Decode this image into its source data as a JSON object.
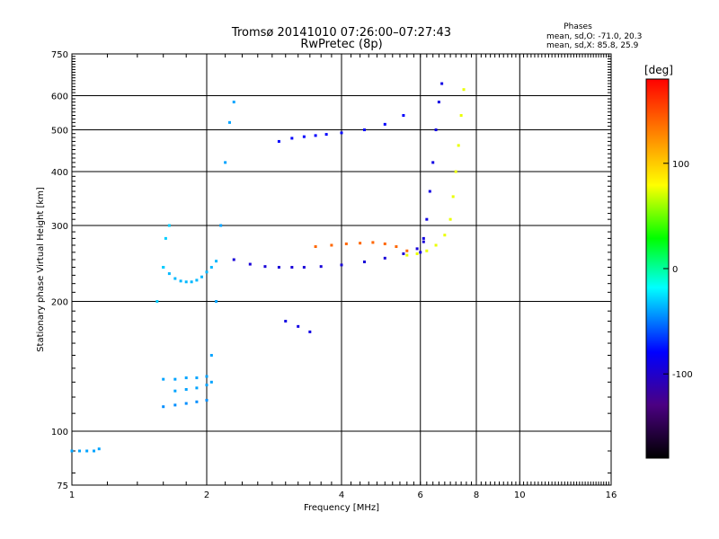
{
  "chart_data": {
    "type": "scatter",
    "title": "Tromsø 20141010 07:26:00–07:27:43",
    "subtitle": "RwPretec (8p)",
    "xlabel": "Frequency [MHz]",
    "ylabel": "Stationary phase Virtual Height [km]",
    "x_scale": "log",
    "y_scale": "log",
    "xlim": [
      1,
      16
    ],
    "ylim": [
      75,
      750
    ],
    "x_ticks": [
      1,
      2,
      4,
      6,
      8,
      10,
      16
    ],
    "y_ticks": [
      75,
      100,
      200,
      300,
      400,
      500,
      600,
      750
    ],
    "x_gridlines": [
      2,
      4,
      6,
      8,
      10
    ],
    "y_gridlines": [
      100,
      200,
      300,
      400,
      500,
      600
    ],
    "stats": {
      "heading": "Phases",
      "line1": "mean, sd,O:  -71.0, 20.3",
      "line2": "mean, sd,X:  85.8, 25.9"
    },
    "colorbar": {
      "label": "[deg]",
      "ticks": [
        100,
        0,
        -100
      ],
      "range": [
        -180,
        180
      ],
      "colors": [
        "#000000",
        "#4b0082",
        "#0000ff",
        "#00ffff",
        "#00ff00",
        "#ffff00",
        "#ff8000",
        "#ff0000"
      ]
    },
    "traces": [
      {
        "x": [
          1.0,
          1.04,
          1.08,
          1.12,
          1.15
        ],
        "y": [
          90,
          90,
          90,
          90,
          91
        ],
        "phase": -40
      },
      {
        "x": [
          1.6,
          1.65,
          1.7,
          1.75,
          1.8,
          1.85,
          1.9,
          1.95,
          2.0,
          2.05,
          2.1
        ],
        "y": [
          240,
          232,
          226,
          223,
          222,
          222,
          224,
          228,
          234,
          240,
          248
        ],
        "phase": -35
      },
      {
        "x": [
          1.55,
          1.6,
          1.62,
          1.65
        ],
        "y": [
          200,
          240,
          280,
          300
        ],
        "phase": -30
      },
      {
        "x": [
          1.6,
          1.7,
          1.8,
          1.9,
          2.0
        ],
        "y": [
          132,
          132,
          133,
          133,
          134
        ],
        "phase": -40
      },
      {
        "x": [
          1.6,
          1.7,
          1.8,
          1.9,
          2.0
        ],
        "y": [
          114,
          115,
          116,
          117,
          118
        ],
        "phase": -45
      },
      {
        "x": [
          1.7,
          1.8,
          1.9,
          2.0,
          2.05
        ],
        "y": [
          124,
          125,
          126,
          128,
          130
        ],
        "phase": -40
      },
      {
        "x": [
          2.9,
          3.1,
          3.3,
          3.5,
          3.7,
          4.0,
          4.5,
          5.0,
          5.5
        ],
        "y": [
          470,
          478,
          482,
          485,
          488,
          492,
          500,
          515,
          540
        ],
        "phase": -80
      },
      {
        "x": [
          2.3,
          2.5,
          2.7,
          2.9,
          3.1,
          3.3,
          3.6,
          4.0,
          4.5,
          5.0,
          5.5,
          5.9,
          6.1
        ],
        "y": [
          250,
          244,
          241,
          240,
          240,
          240,
          241,
          243,
          247,
          252,
          258,
          265,
          275
        ],
        "phase": -95
      },
      {
        "x": [
          6.0,
          6.1,
          6.2,
          6.3,
          6.4,
          6.5,
          6.6,
          6.7
        ],
        "y": [
          260,
          280,
          310,
          360,
          420,
          500,
          580,
          640
        ],
        "phase": -90
      },
      {
        "x": [
          3.5,
          3.8,
          4.1,
          4.4,
          4.7,
          5.0,
          5.3,
          5.6
        ],
        "y": [
          268,
          270,
          272,
          273,
          274,
          272,
          268,
          262
        ],
        "phase": 140
      },
      {
        "x": [
          5.6,
          5.9,
          6.2,
          6.5,
          6.8,
          7.0,
          7.1,
          7.2,
          7.3,
          7.4,
          7.5
        ],
        "y": [
          256,
          258,
          262,
          270,
          285,
          310,
          350,
          400,
          460,
          540,
          620
        ],
        "phase": 75
      },
      {
        "x": [
          2.05,
          2.1,
          2.15,
          2.2,
          2.25,
          2.3
        ],
        "y": [
          150,
          200,
          300,
          420,
          520,
          580
        ],
        "phase": -40
      },
      {
        "x": [
          3.0,
          3.2,
          3.4
        ],
        "y": [
          180,
          175,
          170
        ],
        "phase": -90
      }
    ]
  }
}
